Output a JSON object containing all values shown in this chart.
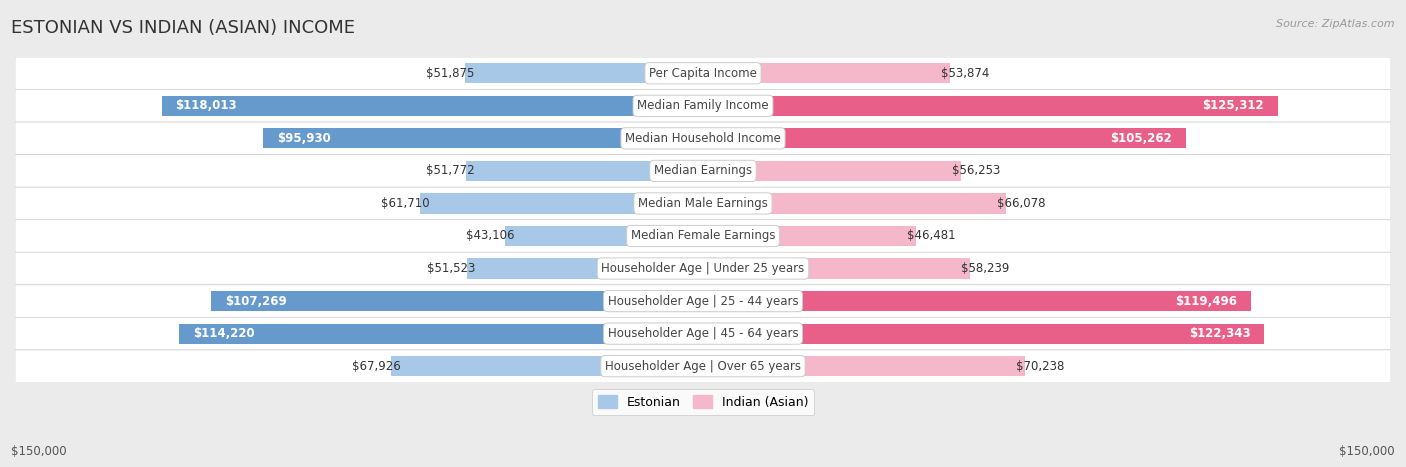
{
  "title": "ESTONIAN VS INDIAN (ASIAN) INCOME",
  "source": "Source: ZipAtlas.com",
  "categories": [
    "Per Capita Income",
    "Median Family Income",
    "Median Household Income",
    "Median Earnings",
    "Median Male Earnings",
    "Median Female Earnings",
    "Householder Age | Under 25 years",
    "Householder Age | 25 - 44 years",
    "Householder Age | 45 - 64 years",
    "Householder Age | Over 65 years"
  ],
  "estonian_values": [
    51875,
    118013,
    95930,
    51772,
    61710,
    43106,
    51523,
    107269,
    114220,
    67926
  ],
  "indian_values": [
    53874,
    125312,
    105262,
    56253,
    66078,
    46481,
    58239,
    119496,
    122343,
    70238
  ],
  "estonian_labels": [
    "$51,875",
    "$118,013",
    "$95,930",
    "$51,772",
    "$61,710",
    "$43,106",
    "$51,523",
    "$107,269",
    "$114,220",
    "$67,926"
  ],
  "indian_labels": [
    "$53,874",
    "$125,312",
    "$105,262",
    "$56,253",
    "$66,078",
    "$46,481",
    "$58,239",
    "$119,496",
    "$122,343",
    "$70,238"
  ],
  "max_value": 150000,
  "estonian_color_light": "#a8c8e8",
  "estonian_color_dark": "#6699cc",
  "indian_color_light": "#f5b8cb",
  "indian_color_dark": "#e8608a",
  "bg_color": "#ebebeb",
  "row_bg_even": "#f5f5f5",
  "row_bg_odd": "#ebebeb",
  "axis_label_left": "$150,000",
  "axis_label_right": "$150,000",
  "legend_estonian": "Estonian",
  "legend_indian": "Indian (Asian)",
  "title_fontsize": 13,
  "value_fontsize": 8.5,
  "category_fontsize": 8.5,
  "bold_threshold": 0.6
}
